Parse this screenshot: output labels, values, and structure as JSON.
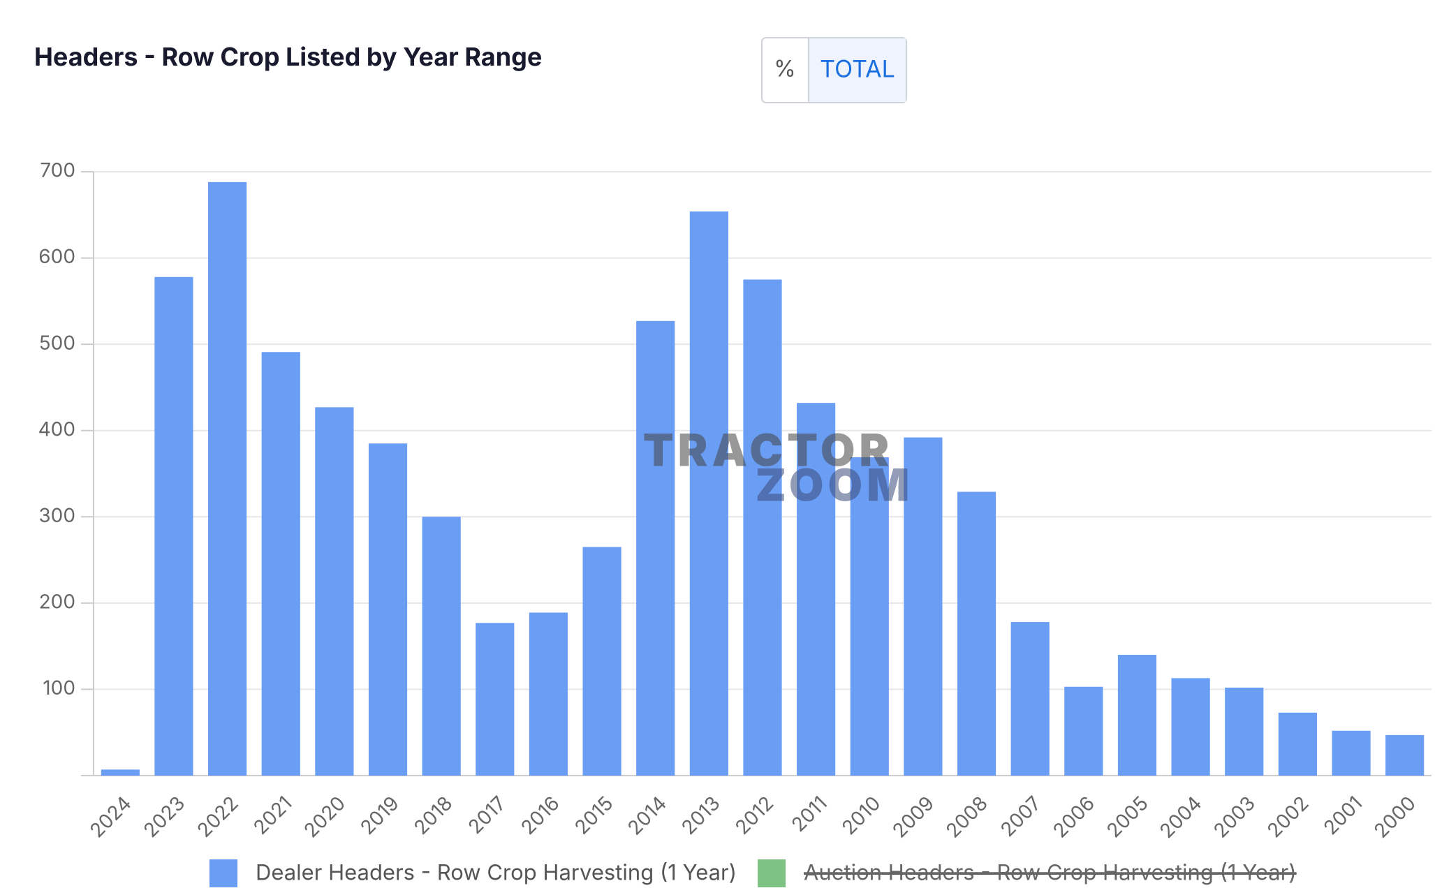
{
  "chart_data": {
    "type": "bar",
    "title": "Headers - Row Crop Listed by Year Range",
    "toggle": [
      "%",
      "TOTAL"
    ],
    "watermark": [
      "TRACTOR",
      "ZOOM"
    ],
    "categories": [
      "2024",
      "2023",
      "2022",
      "2021",
      "2020",
      "2019",
      "2018",
      "2017",
      "2016",
      "2015",
      "2014",
      "2013",
      "2012",
      "2011",
      "2010",
      "2009",
      "2008",
      "2007",
      "2006",
      "2005",
      "2004",
      "2003",
      "2002",
      "2001",
      "2000"
    ],
    "series": [
      {
        "name": "Dealer Headers - Row Crop Harvesting (1 Year)",
        "color": "#6a9ef5",
        "values": [
          7,
          578,
          688,
          491,
          427,
          385,
          300,
          177,
          189,
          265,
          527,
          654,
          575,
          432,
          369,
          392,
          329,
          178,
          103,
          140,
          113,
          102,
          73,
          52,
          47
        ]
      },
      {
        "name": "Auction Headers - Row Crop Harvesting (1 Year)",
        "color": "#7ec384",
        "hidden": true
      }
    ],
    "ylim": [
      0,
      700
    ],
    "yticks": [
      100,
      200,
      300,
      400,
      500,
      600,
      700
    ],
    "grid": true
  }
}
